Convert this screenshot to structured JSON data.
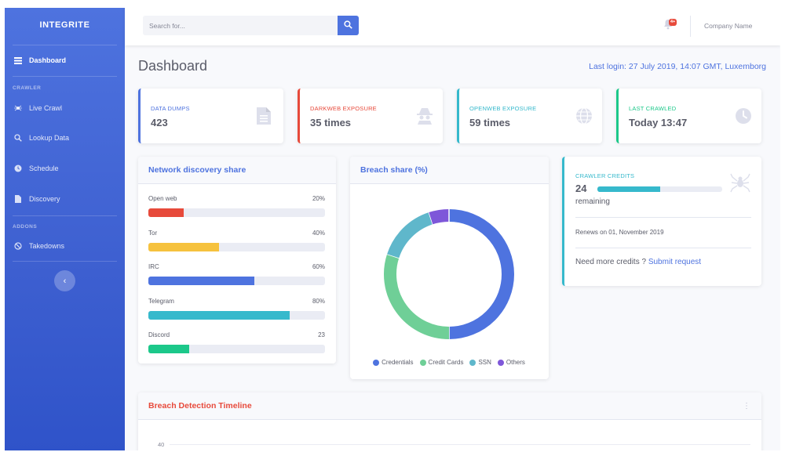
{
  "sidebar": {
    "brand": "INTEGRITE",
    "dashboard": "Dashboard",
    "heading_crawler": "CRAWLER",
    "live_crawl": "Live Crawl",
    "lookup_data": "Lookup Data",
    "schedule": "Schedule",
    "discovery": "Discovery",
    "heading_addons": "ADDONS",
    "takedowns": "Takedowns"
  },
  "topbar": {
    "search_placeholder": "Search for...",
    "alert_badge": "4+",
    "company": "Company Name"
  },
  "page": {
    "title": "Dashboard",
    "last_login": "Last login: 27 July 2019, 14:07 GMT, Luxemborg"
  },
  "stats": [
    {
      "label": "DATA DUMPS",
      "value": "423",
      "color": "#4e73df",
      "icon": "document-icon"
    },
    {
      "label": "DARKWEB EXPOSURE",
      "value": "35 times",
      "color": "#e74a3b",
      "icon": "spy-icon"
    },
    {
      "label": "OPENWEB EXPOSURE",
      "value": "59 times",
      "color": "#36b9cc",
      "icon": "globe-icon"
    },
    {
      "label": "LAST CRAWLED",
      "value": "Today 13:47",
      "color": "#1cc88a",
      "icon": "clock-icon"
    }
  ],
  "network": {
    "title": "Network discovery share",
    "rows": [
      {
        "label": "Open web",
        "value": "20%",
        "fraction": 0.2,
        "color": "#e74a3b"
      },
      {
        "label": "Tor",
        "value": "40%",
        "fraction": 0.4,
        "color": "#f6c23e"
      },
      {
        "label": "IRC",
        "value": "60%",
        "fraction": 0.6,
        "color": "#4e73df"
      },
      {
        "label": "Telegram",
        "value": "80%",
        "fraction": 0.8,
        "color": "#36b9cc"
      },
      {
        "label": "Discord",
        "value": "23",
        "fraction": 0.23,
        "color": "#1cc88a"
      }
    ]
  },
  "breach": {
    "title": "Breach share (%)",
    "legend": [
      {
        "label": "Credentials",
        "color": "#4e73df"
      },
      {
        "label": "Credit Cards",
        "color": "#6fcf97"
      },
      {
        "label": "SSN",
        "color": "#5fb7cb"
      },
      {
        "label": "Others",
        "color": "#7e57d9"
      }
    ]
  },
  "chart_data": {
    "type": "pie",
    "title": "Breach share (%)",
    "categories": [
      "Credentials",
      "Credit Cards",
      "SSN",
      "Others"
    ],
    "values": [
      50,
      30,
      15,
      5
    ]
  },
  "credits": {
    "label": "CRAWLER CREDITS",
    "value": "24",
    "fraction": 0.5,
    "remaining": "remaining",
    "renews": "Renews on 01, November 2019",
    "more_text": "Need more credits ?",
    "more_link": "Submit request"
  },
  "timeline": {
    "title": "Breach Detection Timeline",
    "tick": "40"
  }
}
